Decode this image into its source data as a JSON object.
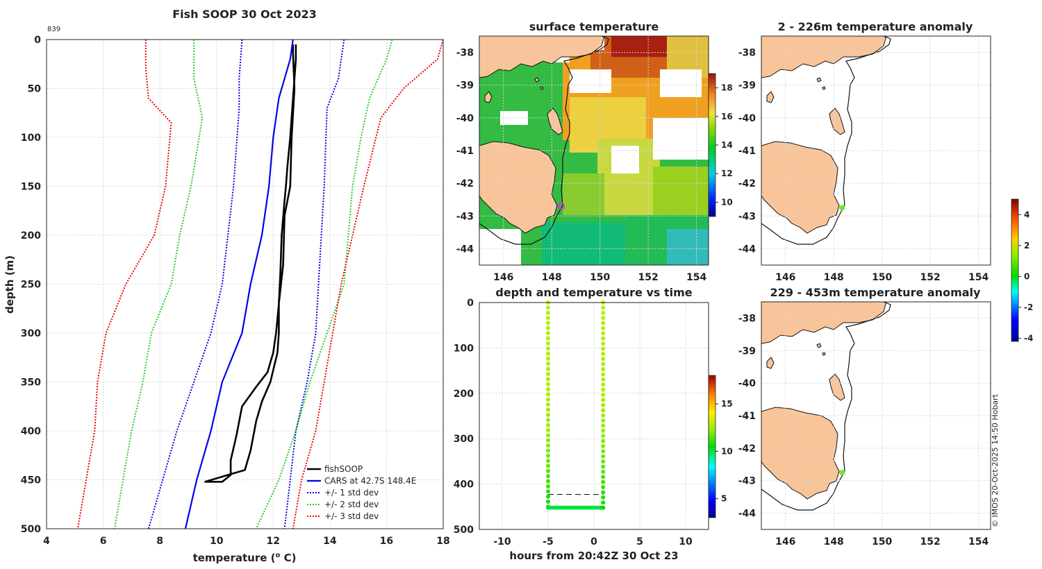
{
  "colors": {
    "land": "#f8c59a",
    "coast": "#111111",
    "fishsoop": "#000000",
    "cars": "#0000ee",
    "std1": "#0000dd",
    "std2": "#22cc22",
    "std3": "#ee0000",
    "marker_green": "#66ee22",
    "marker_magenta": "#ee22ee"
  },
  "chart_data": [
    {
      "id": "profile",
      "type": "line",
      "title": "Fish SOOP 30 Oct 2023",
      "corner_label": "839",
      "xlabel": "temperature (",
      "xlabel_sup": "o",
      "xlabel_end": " C)",
      "ylabel": "depth (m)",
      "xlim": [
        4,
        18
      ],
      "ylim": [
        0,
        500
      ],
      "xticks": [
        4,
        6,
        8,
        10,
        12,
        14,
        16,
        18
      ],
      "yticks": [
        0,
        50,
        100,
        150,
        200,
        250,
        300,
        350,
        400,
        450,
        500
      ],
      "legend_position": "bottom-right",
      "series": [
        {
          "name": "fishSOOP",
          "style": "solid",
          "color_key": "fishsoop",
          "width": 2.6,
          "points": [
            [
              12.8,
              5
            ],
            [
              12.8,
              20
            ],
            [
              12.75,
              40
            ],
            [
              12.7,
              60
            ],
            [
              12.6,
              100
            ],
            [
              12.5,
              130
            ],
            [
              12.45,
              150
            ],
            [
              12.4,
              165
            ],
            [
              12.3,
              200
            ],
            [
              12.25,
              240
            ],
            [
              12.2,
              270
            ],
            [
              12.2,
              300
            ],
            [
              12.15,
              320
            ],
            [
              11.9,
              350
            ],
            [
              11.6,
              370
            ],
            [
              11.4,
              390
            ],
            [
              11.2,
              420
            ],
            [
              11.0,
              440
            ],
            [
              10.4,
              445
            ],
            [
              9.6,
              452
            ],
            [
              10.2,
              452
            ],
            [
              10.5,
              445
            ],
            [
              10.5,
              430
            ],
            [
              10.7,
              405
            ],
            [
              10.9,
              375
            ],
            [
              11.4,
              355
            ],
            [
              11.8,
              340
            ],
            [
              12.0,
              320
            ],
            [
              12.1,
              300
            ],
            [
              12.2,
              270
            ],
            [
              12.35,
              230
            ],
            [
              12.4,
              180
            ],
            [
              12.6,
              150
            ],
            [
              12.65,
              100
            ],
            [
              12.75,
              50
            ],
            [
              12.7,
              15
            ],
            [
              12.7,
              5
            ]
          ]
        },
        {
          "name": "CARS at 42.7S 148.4E",
          "style": "solid",
          "color_key": "cars",
          "width": 2.2,
          "points": [
            [
              12.7,
              0
            ],
            [
              12.6,
              20
            ],
            [
              12.3,
              50
            ],
            [
              12.2,
              60
            ],
            [
              12.0,
              100
            ],
            [
              11.85,
              150
            ],
            [
              11.6,
              200
            ],
            [
              11.2,
              250
            ],
            [
              10.9,
              300
            ],
            [
              10.2,
              350
            ],
            [
              9.8,
              400
            ],
            [
              9.3,
              450
            ],
            [
              8.9,
              500
            ]
          ]
        },
        {
          "name": "+/- 1 std dev",
          "style": "dotted",
          "color_key": "std1",
          "width": 2,
          "points": [
            [
              10.9,
              0
            ],
            [
              10.8,
              40
            ],
            [
              10.8,
              70
            ],
            [
              10.6,
              150
            ],
            [
              10.2,
              250
            ],
            [
              9.8,
              300
            ],
            [
              9.2,
              350
            ],
            [
              8.6,
              400
            ],
            [
              8.1,
              450
            ],
            [
              7.6,
              500
            ]
          ]
        },
        {
          "name": "+/- 1 std dev upper",
          "style": "dotted",
          "color_key": "std1",
          "width": 2,
          "legend": false,
          "points": [
            [
              14.5,
              0
            ],
            [
              14.3,
              40
            ],
            [
              13.9,
              70
            ],
            [
              13.8,
              150
            ],
            [
              13.6,
              250
            ],
            [
              13.5,
              300
            ],
            [
              13.2,
              350
            ],
            [
              12.8,
              400
            ],
            [
              12.6,
              450
            ],
            [
              12.4,
              500
            ]
          ]
        },
        {
          "name": "+/- 2 std dev",
          "style": "dotted",
          "color_key": "std2",
          "width": 2,
          "points": [
            [
              9.2,
              0
            ],
            [
              9.2,
              40
            ],
            [
              9.5,
              80
            ],
            [
              9.1,
              150
            ],
            [
              8.7,
              200
            ],
            [
              8.4,
              250
            ],
            [
              7.7,
              300
            ],
            [
              7.4,
              350
            ],
            [
              7.0,
              400
            ],
            [
              6.7,
              450
            ],
            [
              6.4,
              500
            ]
          ]
        },
        {
          "name": "+/- 2 std dev upper",
          "style": "dotted",
          "color_key": "std2",
          "width": 2,
          "legend": false,
          "points": [
            [
              16.2,
              0
            ],
            [
              16.0,
              20
            ],
            [
              15.4,
              60
            ],
            [
              15.1,
              100
            ],
            [
              14.8,
              150
            ],
            [
              14.5,
              250
            ],
            [
              13.9,
              300
            ],
            [
              13.3,
              350
            ],
            [
              12.8,
              400
            ],
            [
              12.2,
              450
            ],
            [
              11.4,
              500
            ]
          ]
        },
        {
          "name": "+/- 3 std dev",
          "style": "dotted",
          "color_key": "std3",
          "width": 2,
          "points": [
            [
              7.5,
              0
            ],
            [
              7.5,
              30
            ],
            [
              7.6,
              60
            ],
            [
              8.4,
              85
            ],
            [
              8.2,
              150
            ],
            [
              7.8,
              200
            ],
            [
              6.8,
              250
            ],
            [
              6.1,
              300
            ],
            [
              5.8,
              350
            ],
            [
              5.7,
              400
            ],
            [
              5.4,
              450
            ],
            [
              5.1,
              500
            ]
          ]
        },
        {
          "name": "+/- 3 std dev upper",
          "style": "dotted",
          "color_key": "std3",
          "width": 2,
          "legend": false,
          "points": [
            [
              18.0,
              0
            ],
            [
              17.8,
              20
            ],
            [
              16.6,
              50
            ],
            [
              15.8,
              80
            ],
            [
              15.2,
              150
            ],
            [
              14.8,
              200
            ],
            [
              14.4,
              250
            ],
            [
              14.1,
              300
            ],
            [
              13.8,
              350
            ],
            [
              13.5,
              400
            ],
            [
              13.0,
              450
            ],
            [
              12.7,
              500
            ]
          ]
        }
      ]
    },
    {
      "id": "sst",
      "type": "heatmap",
      "title": "surface temperature",
      "xlim": [
        145,
        154.5
      ],
      "ylim": [
        -44.5,
        -37.5
      ],
      "xticks": [
        146,
        148,
        150,
        152,
        154
      ],
      "yticks": [
        -38,
        -39,
        -40,
        -41,
        -42,
        -43,
        -44
      ],
      "colorbar": {
        "min": 9,
        "max": 19,
        "ticks": [
          10,
          12,
          14,
          16,
          18
        ]
      },
      "marker": {
        "lon": 148.4,
        "lat": -42.7,
        "color_key": "marker_magenta"
      }
    },
    {
      "id": "depth_time",
      "type": "scatter",
      "title": "depth and temperature vs time",
      "xlabel": "hours from 20:42Z 30 Oct 23",
      "xlim": [
        -12.5,
        12.5
      ],
      "ylim": [
        0,
        500
      ],
      "xticks": [
        -10,
        -5,
        0,
        5,
        10
      ],
      "yticks": [
        0,
        100,
        200,
        300,
        400,
        500
      ],
      "reference_depth": 423,
      "colorbar": {
        "min": 3,
        "max": 18,
        "ticks": [
          5,
          10,
          15
        ]
      },
      "segments": [
        {
          "x": -5.0,
          "from_depth": 0,
          "to_depth": 450,
          "temp_top": 12.8,
          "temp_bottom": 10.5
        },
        {
          "x_from": -5.0,
          "x_to": 1.0,
          "depth": 452,
          "temp": 10.0
        },
        {
          "x": 1.0,
          "from_depth": 452,
          "to_depth": 0,
          "temp_top": 12.8,
          "temp_bottom": 10.5
        }
      ]
    },
    {
      "id": "anom_upper",
      "type": "heatmap",
      "title": "2 - 226m temperature anomaly",
      "xlim": [
        145,
        154.5
      ],
      "ylim": [
        -44.5,
        -37.5
      ],
      "xticks": [
        146,
        148,
        150,
        152,
        154
      ],
      "yticks": [
        -38,
        -39,
        -40,
        -41,
        -42,
        -43,
        -44
      ],
      "marker": {
        "lon": 148.35,
        "lat": -42.75,
        "value": 0.2,
        "color_key": "marker_green"
      }
    },
    {
      "id": "anom_lower",
      "type": "heatmap",
      "title": "229 - 453m temperature anomaly",
      "xlim": [
        145,
        154.5
      ],
      "ylim": [
        -44.5,
        -37.5
      ],
      "xticks": [
        146,
        148,
        150,
        152,
        154
      ],
      "yticks": [
        -38,
        -39,
        -40,
        -41,
        -42,
        -43,
        -44
      ],
      "marker": {
        "lon": 148.35,
        "lat": -42.75,
        "value": 0.5,
        "color_key": "marker_green"
      }
    },
    {
      "id": "anom_colorbar",
      "type": "colorbar",
      "min": -4.2,
      "max": 5.0,
      "ticks": [
        -4,
        -2,
        0,
        2,
        4
      ]
    }
  ],
  "credit": "© IMOS 20-Oct-2025 14:50 Hobart"
}
